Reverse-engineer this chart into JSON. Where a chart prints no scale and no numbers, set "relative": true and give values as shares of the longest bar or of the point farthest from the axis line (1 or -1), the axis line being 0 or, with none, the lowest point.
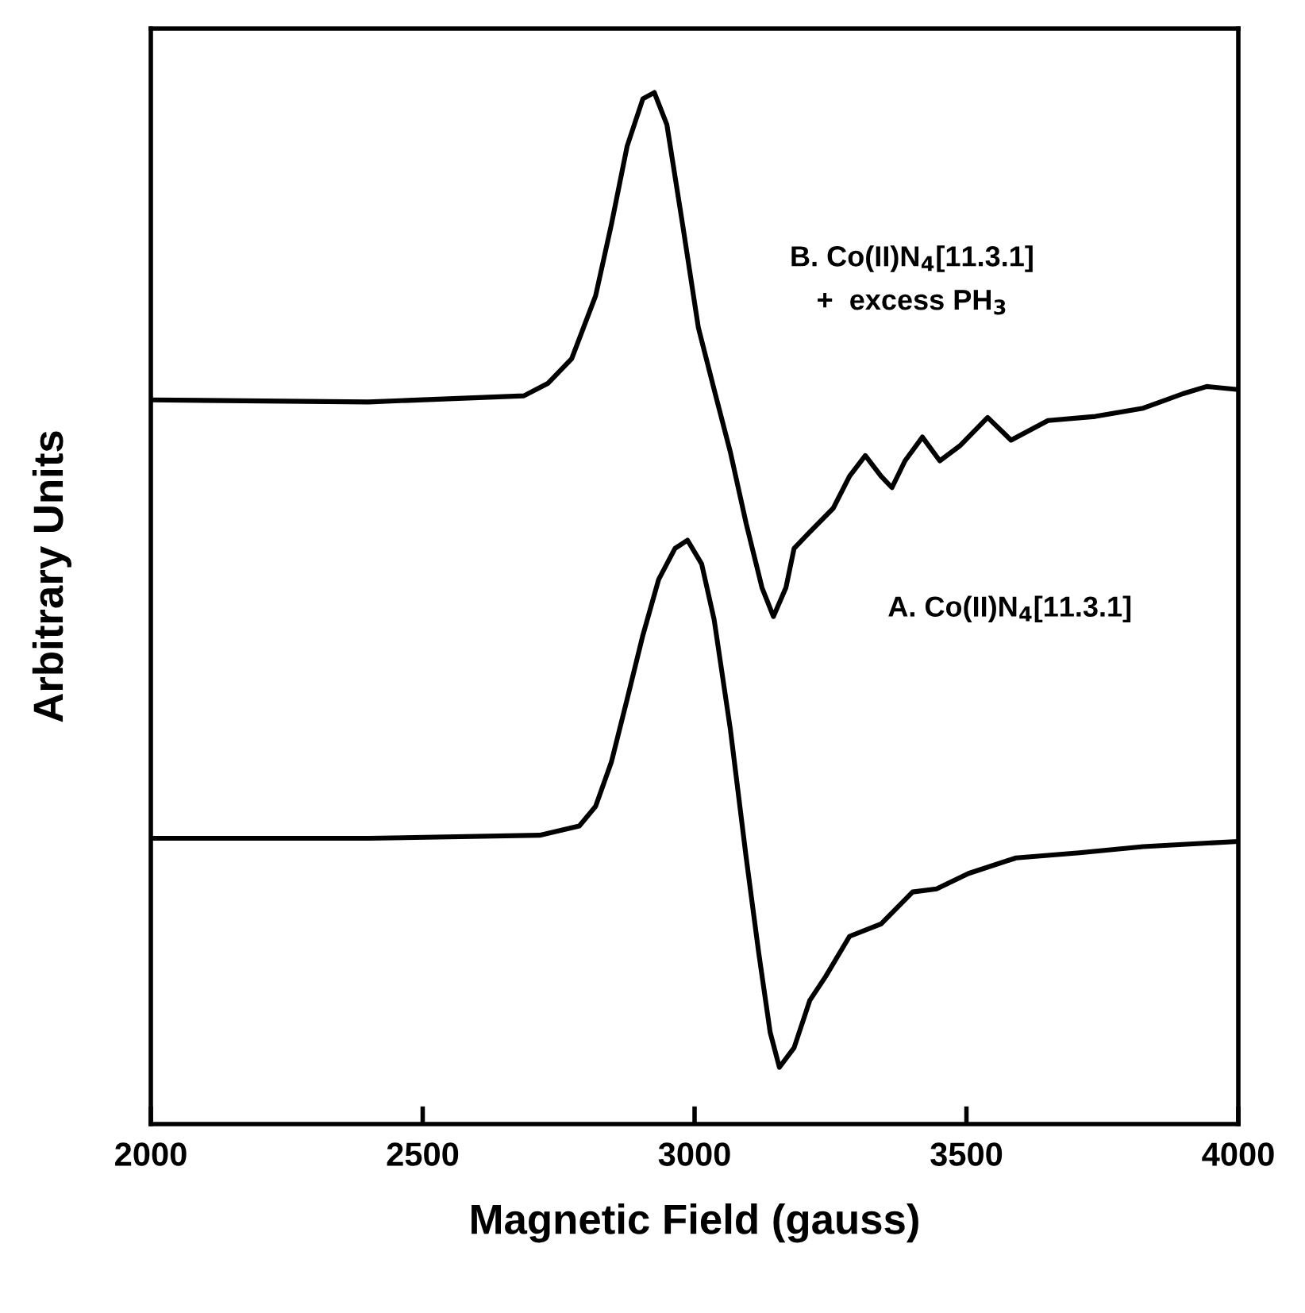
{
  "chart_data": {
    "type": "line",
    "relative": true,
    "xlabel": "Magnetic Field (gauss)",
    "ylabel": "Arbitrary Units",
    "xlim": [
      2000,
      4000
    ],
    "xticks": [
      2000,
      2500,
      3000,
      3500,
      4000
    ],
    "tick_labels": "x",
    "annotations": [
      "B. Co(II)N$_{4}$[11.3.1]\n+  excess PH$_{3}$",
      "A. Co(II)N$_{4}$[11.3.1]"
    ],
    "grid": false,
    "legend": false,
    "series": [
      {
        "color": "#000000",
        "x": [
          2000,
          2400,
          2686,
          2730,
          2774,
          2818,
          2847,
          2876,
          2905,
          2926,
          2949,
          2978,
          3007,
          3036,
          3066,
          3095,
          3124,
          3145,
          3168,
          3183,
          3212,
          3255,
          3285,
          3314,
          3343,
          3363,
          3387,
          3419,
          3451,
          3489,
          3539,
          3582,
          3650,
          3737,
          3825,
          3898,
          3942,
          4000
        ],
        "values": [
          0.702,
          0.7,
          0.706,
          0.718,
          0.742,
          0.803,
          0.872,
          0.948,
          0.994,
          1.0,
          0.969,
          0.872,
          0.772,
          0.712,
          0.651,
          0.582,
          0.52,
          0.492,
          0.52,
          0.558,
          0.574,
          0.597,
          0.628,
          0.648,
          0.628,
          0.617,
          0.643,
          0.666,
          0.643,
          0.658,
          0.685,
          0.663,
          0.682,
          0.686,
          0.694,
          0.708,
          0.715,
          0.712
        ]
      },
      {
        "color": "#000000",
        "x": [
          2000,
          2400,
          2715,
          2788,
          2818,
          2847,
          2876,
          2905,
          2934,
          2964,
          2987,
          3013,
          3036,
          3066,
          3095,
          3118,
          3139,
          3156,
          3183,
          3212,
          3241,
          3285,
          3343,
          3401,
          3445,
          3504,
          3591,
          3708,
          3825,
          4000
        ],
        "values": [
          0.277,
          0.277,
          0.28,
          0.289,
          0.308,
          0.351,
          0.412,
          0.474,
          0.528,
          0.558,
          0.566,
          0.543,
          0.489,
          0.382,
          0.258,
          0.166,
          0.089,
          0.055,
          0.074,
          0.12,
          0.143,
          0.182,
          0.194,
          0.225,
          0.228,
          0.243,
          0.258,
          0.263,
          0.269,
          0.274
        ]
      }
    ]
  }
}
